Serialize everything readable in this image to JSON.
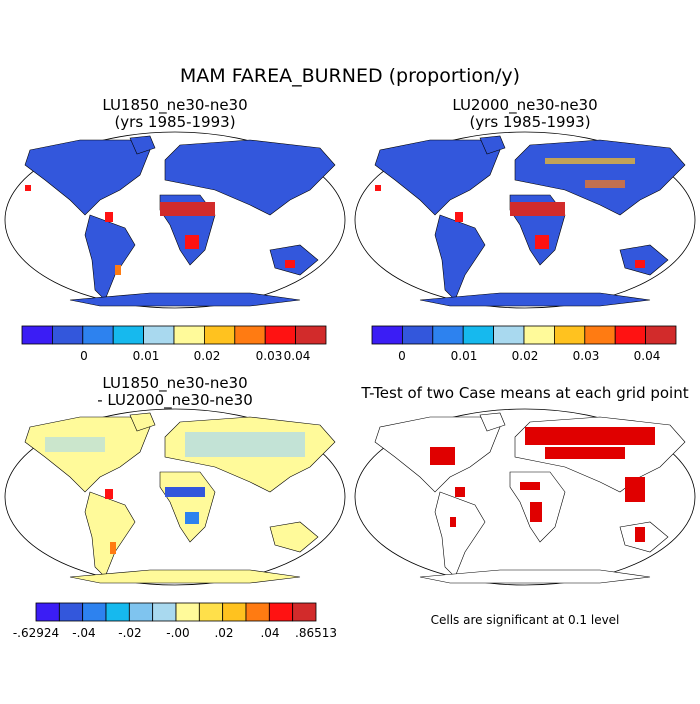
{
  "title": "MAM FAREA_BURNED (proportion/y)",
  "panels": [
    {
      "title": [
        "LU1850_ne30-ne30",
        "(yrs 1985-1993)"
      ]
    },
    {
      "title": [
        "LU2000_ne30-ne30",
        "(yrs 1985-1993)"
      ]
    },
    {
      "title": [
        "LU1850_ne30-ne30",
        "- LU2000_ne30-ne30"
      ]
    },
    {
      "title": [
        "T-Test of two Case means at each grid point"
      ]
    }
  ],
  "colorbars": [
    {
      "colors": [
        "#3b1df5",
        "#3357dc",
        "#2d82ef",
        "#16b9ee",
        "#a9d9ef",
        "#fffa9a",
        "#ffc21f",
        "#ff7b12",
        "#ff1212",
        "#d22b2b"
      ],
      "labels": [
        "0",
        "0.01",
        "0.02",
        "0.03",
        "0.04"
      ]
    },
    {
      "colors": [
        "#3b1df5",
        "#3357dc",
        "#2d82ef",
        "#16b9ee",
        "#a9d9ef",
        "#fffa9a",
        "#ffc21f",
        "#ff7b12",
        "#ff1212",
        "#d22b2b"
      ],
      "labels": [
        "0",
        "0.01",
        "0.02",
        "0.03",
        "0.04"
      ]
    },
    {
      "colors": [
        "#3b1df5",
        "#3357dc",
        "#2d82ef",
        "#16b9ee",
        "#7fc4ef",
        "#a9d9ef",
        "#fffa9a",
        "#ffe04a",
        "#ffc21f",
        "#ff7b12",
        "#ff1212",
        "#d22b2b"
      ],
      "labels": [
        "-.62924",
        "-.04",
        "-.02",
        "-.00",
        ".02",
        ".04",
        ".86513"
      ]
    }
  ],
  "note": "Cells are significant at 0.1 level"
}
